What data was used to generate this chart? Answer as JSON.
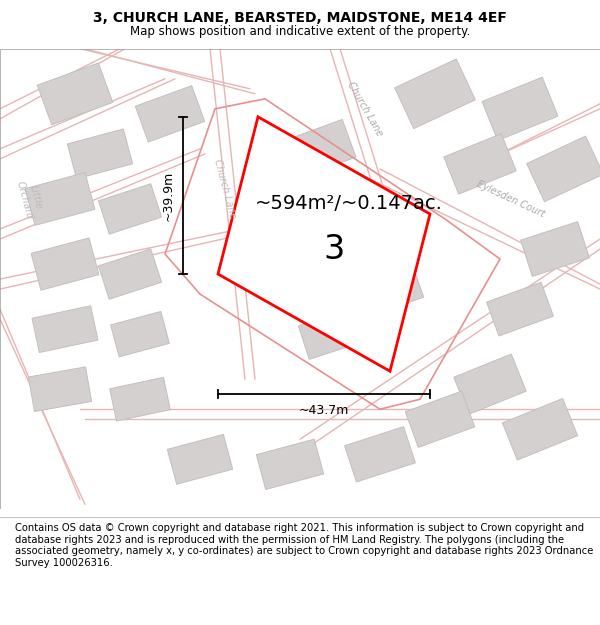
{
  "title": "3, CHURCH LANE, BEARSTED, MAIDSTONE, ME14 4EF",
  "subtitle": "Map shows position and indicative extent of the property.",
  "footer": "Contains OS data © Crown copyright and database right 2021. This information is subject to Crown copyright and database rights 2023 and is reproduced with the permission of HM Land Registry. The polygons (including the associated geometry, namely x, y co-ordinates) are subject to Crown copyright and database rights 2023 Ordnance Survey 100026316.",
  "area_label": "~594m²/~0.147ac.",
  "width_label": "~43.7m",
  "height_label": "~39.9m",
  "property_number": "3",
  "map_bg": "#f2f0f0",
  "highlight_color": "#ff0000",
  "road_color": "#e8b4b4",
  "building_color": "#d4d0d0",
  "building_edge_color": "#c4bfbf",
  "title_fontsize": 10,
  "subtitle_fontsize": 8.5,
  "footer_fontsize": 7.2,
  "area_fontsize": 14,
  "number_fontsize": 24,
  "dim_fontsize": 9,
  "road_label_fontsize": 7
}
